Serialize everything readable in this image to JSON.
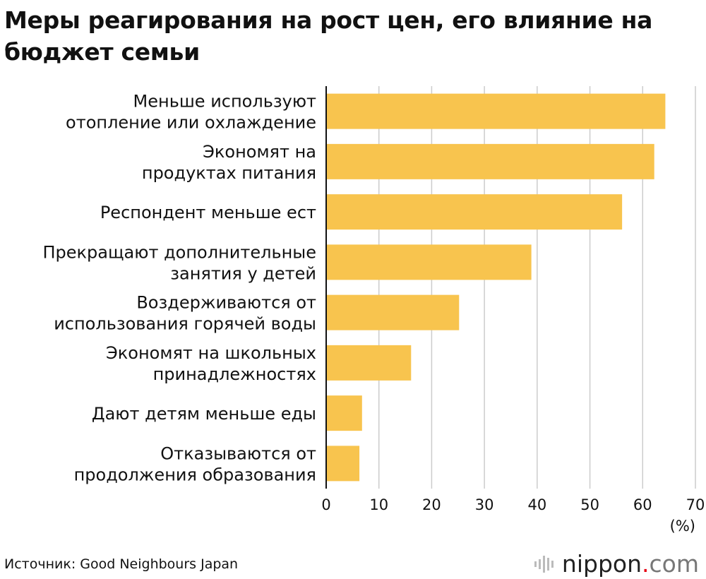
{
  "title": "Меры реагирования на рост цен, его влияние на бюджет семьи",
  "chart_data": {
    "type": "bar",
    "orientation": "horizontal",
    "categories": [
      [
        "Меньше используют",
        "отопление или охлаждение"
      ],
      [
        "Экономят на",
        "продуктах питания"
      ],
      [
        "Респондент меньше ест"
      ],
      [
        "Прекращают дополнительные",
        "занятия у детей"
      ],
      [
        "Воздерживаются от",
        "использования горячей воды"
      ],
      [
        "Экономят на школьных",
        "принадлежностях"
      ],
      [
        "Дают детям меньше еды"
      ],
      [
        "Отказываются от",
        "продолжения образования"
      ]
    ],
    "values": [
      64.3,
      62.2,
      56.1,
      38.9,
      25.2,
      16.1,
      6.8,
      6.3
    ],
    "xlim": [
      0,
      70
    ],
    "xticks": [
      0,
      10,
      20,
      30,
      40,
      50,
      60,
      70
    ],
    "unit_label": "(%)",
    "bar_color": "#f8c44e",
    "grid_color": "#cccccc",
    "grid": true
  },
  "source": "Источник: Good Neighbours Japan",
  "brand": {
    "name": "nippon",
    "dot": ".",
    "domain": "com",
    "icon": "sound-bars-icon",
    "dot_color": "#e60012"
  }
}
